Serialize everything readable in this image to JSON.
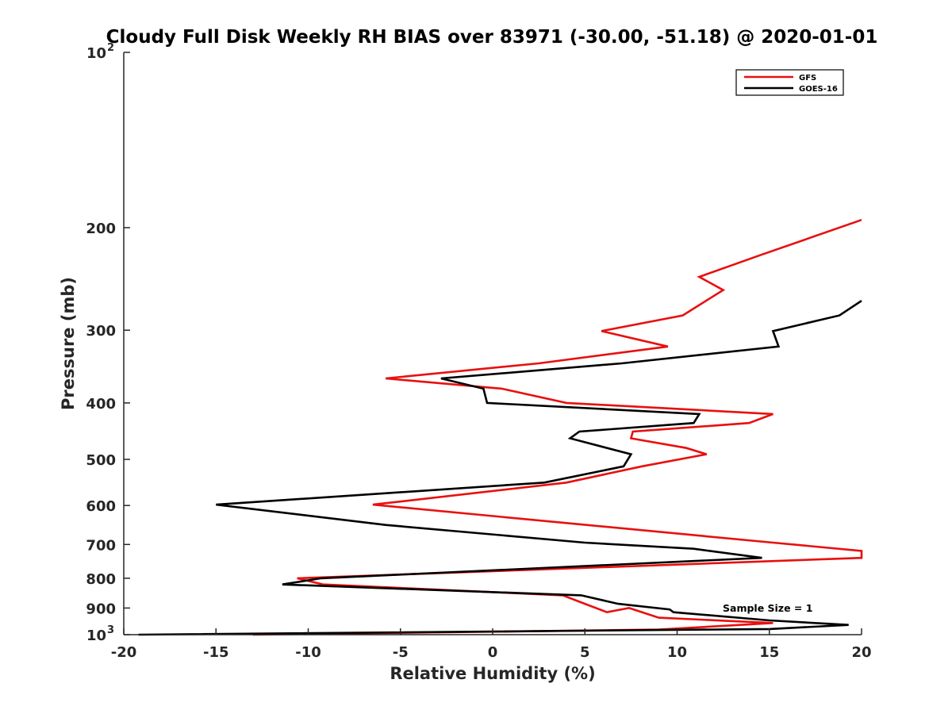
{
  "chart_data": {
    "type": "line",
    "title": "Cloudy Full Disk Weekly RH BIAS over 83971 (-30.00, -51.18) @ 2020-01-01",
    "xlabel": "Relative Humidity (%)",
    "ylabel": "Pressure (mb)",
    "xlim": [
      -20,
      20
    ],
    "ylim": [
      100,
      1000
    ],
    "yscale": "log",
    "y_reversed": true,
    "x_ticks": [
      -20,
      -15,
      -10,
      -5,
      0,
      5,
      10,
      15,
      20
    ],
    "x_tick_labels": [
      "-20",
      "-15",
      "-10",
      "-5",
      "0",
      "5",
      "10",
      "15",
      "20"
    ],
    "y_ticks": [
      100,
      200,
      300,
      400,
      500,
      600,
      700,
      800,
      900,
      1000
    ],
    "y_tick_labels": [
      {
        "base": "10",
        "sup": "2"
      },
      {
        "base": "200",
        "sup": ""
      },
      {
        "base": "300",
        "sup": ""
      },
      {
        "base": "400",
        "sup": ""
      },
      {
        "base": "500",
        "sup": ""
      },
      {
        "base": "600",
        "sup": ""
      },
      {
        "base": "700",
        "sup": ""
      },
      {
        "base": "800",
        "sup": ""
      },
      {
        "base": "900",
        "sup": ""
      },
      {
        "base": "10",
        "sup": "3"
      }
    ],
    "grid": false,
    "legend_position": "top-right",
    "annotation": "Sample Size = 1",
    "series": [
      {
        "name": "GFS",
        "color": "#e8100f",
        "points": [
          [
            20.0,
            194
          ],
          [
            14.5,
            223
          ],
          [
            11.2,
            243
          ],
          [
            12.5,
            256
          ],
          [
            10.3,
            283
          ],
          [
            5.9,
            301
          ],
          [
            9.5,
            320
          ],
          [
            2.5,
            342
          ],
          [
            -5.8,
            363
          ],
          [
            0.5,
            378
          ],
          [
            4.0,
            400
          ],
          [
            15.2,
            418
          ],
          [
            13.9,
            433
          ],
          [
            7.6,
            448
          ],
          [
            7.5,
            460
          ],
          [
            10.5,
            478
          ],
          [
            11.6,
            490
          ],
          [
            8.1,
            514
          ],
          [
            4.0,
            548
          ],
          [
            -6.5,
            598
          ],
          [
            15.2,
            695
          ],
          [
            20.0,
            718
          ],
          [
            20.0,
            738
          ],
          [
            -10.6,
            800
          ],
          [
            -9.2,
            820
          ],
          [
            3.8,
            856
          ],
          [
            5.0,
            885
          ],
          [
            6.2,
            915
          ],
          [
            7.4,
            900
          ],
          [
            9.0,
            935
          ],
          [
            15.2,
            955
          ],
          [
            9.0,
            980
          ],
          [
            -13.0,
            1000
          ]
        ]
      },
      {
        "name": "GOES-16",
        "color": "#000000",
        "points": [
          [
            20.0,
            267
          ],
          [
            18.8,
            283
          ],
          [
            15.2,
            301
          ],
          [
            15.5,
            320
          ],
          [
            7.0,
            342
          ],
          [
            -2.8,
            363
          ],
          [
            -0.5,
            378
          ],
          [
            -0.3,
            400
          ],
          [
            11.2,
            418
          ],
          [
            10.9,
            433
          ],
          [
            4.7,
            448
          ],
          [
            4.2,
            460
          ],
          [
            7.5,
            490
          ],
          [
            7.1,
            514
          ],
          [
            2.8,
            548
          ],
          [
            -15.0,
            598
          ],
          [
            -5.8,
            648
          ],
          [
            5.0,
            695
          ],
          [
            10.9,
            712
          ],
          [
            14.6,
            738
          ],
          [
            -9.3,
            800
          ],
          [
            -11.4,
            820
          ],
          [
            4.8,
            856
          ],
          [
            6.8,
            885
          ],
          [
            9.6,
            905
          ],
          [
            9.8,
            915
          ],
          [
            15.0,
            945
          ],
          [
            19.3,
            962
          ],
          [
            15.0,
            978
          ],
          [
            -19.2,
            1000
          ]
        ]
      }
    ]
  }
}
